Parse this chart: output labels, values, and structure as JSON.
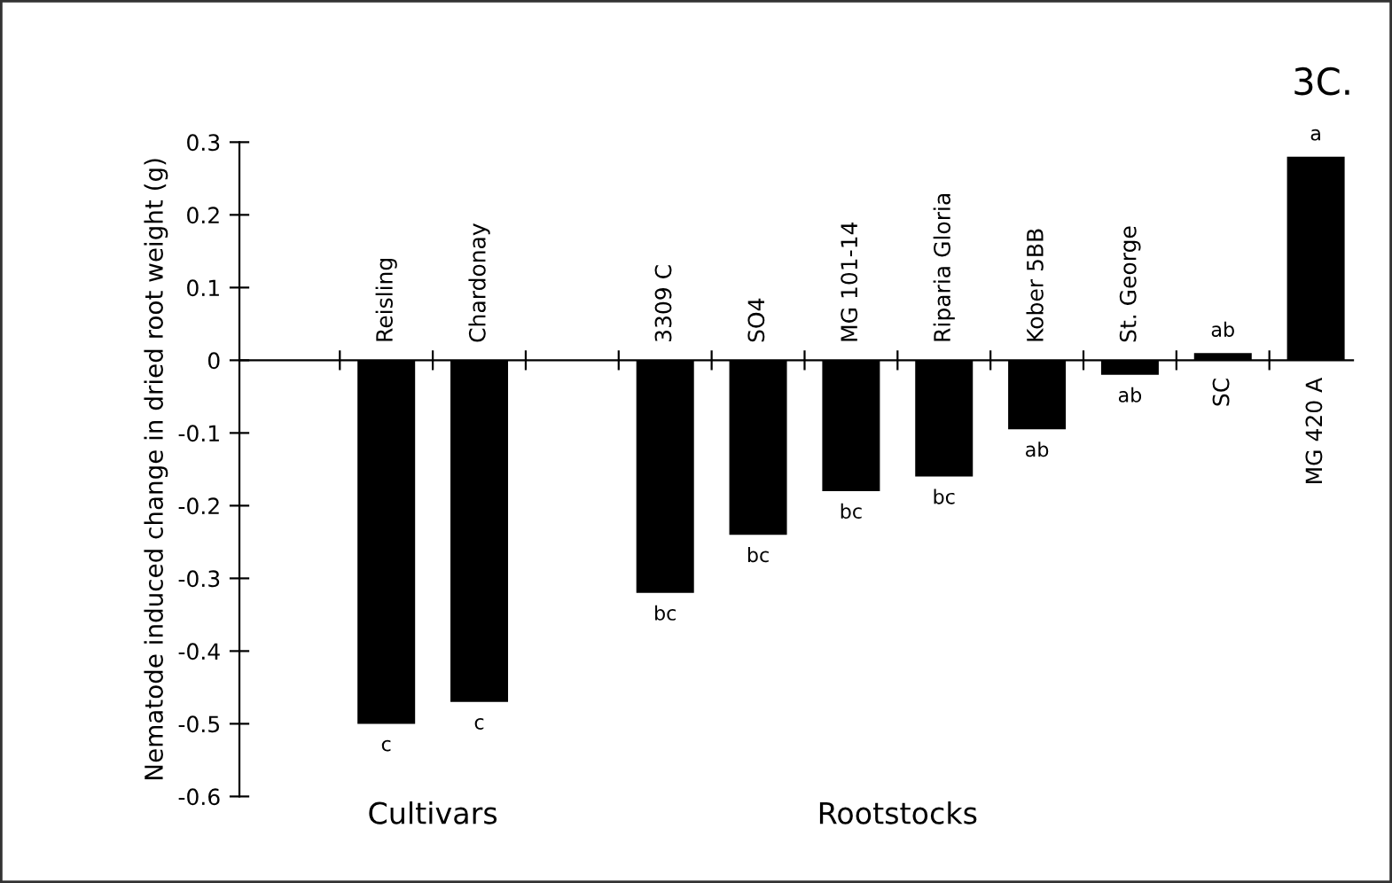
{
  "chart_data": {
    "type": "bar",
    "title": "3C.",
    "ylabel": "Nematode induced change in dried root weight (g)",
    "categories": [
      "Reisling",
      "Chardonay",
      null,
      "3309 C",
      "SO4",
      "MG 101-14",
      "Riparia Gloria",
      "Kober 5BB",
      "St. George",
      "SC",
      "MG 420 A"
    ],
    "values": [
      -0.5,
      -0.47,
      null,
      -0.32,
      -0.24,
      -0.18,
      -0.16,
      -0.095,
      -0.02,
      0.01,
      0.28
    ],
    "color": "#000000",
    "ylim": [
      -0.6,
      0.3
    ],
    "yticks": [
      0.3,
      0.2,
      0.1,
      0,
      -0.1,
      -0.2,
      -0.3,
      -0.4,
      -0.5,
      -0.6
    ],
    "grid": false,
    "annotations": [
      {
        "text": "c",
        "x": "Reisling",
        "y": -0.5
      },
      {
        "text": "c",
        "x": "Chardonay",
        "y": -0.47
      },
      {
        "text": "bc",
        "x": "3309 C",
        "y": -0.32
      },
      {
        "text": "bc",
        "x": "SO4",
        "y": -0.24
      },
      {
        "text": "bc",
        "x": "MG 101-14",
        "y": -0.18
      },
      {
        "text": "bc",
        "x": "Riparia Gloria",
        "y": -0.16
      },
      {
        "text": "ab",
        "x": "Kober 5BB",
        "y": -0.095
      },
      {
        "text": "ab",
        "x": "St. George",
        "y": -0.02
      },
      {
        "text": "ab",
        "x": "SC",
        "y": 0.01
      },
      {
        "text": "a",
        "x": "MG 420 A",
        "y": 0.28
      },
      "Cultivars",
      "Rootstocks"
    ]
  }
}
